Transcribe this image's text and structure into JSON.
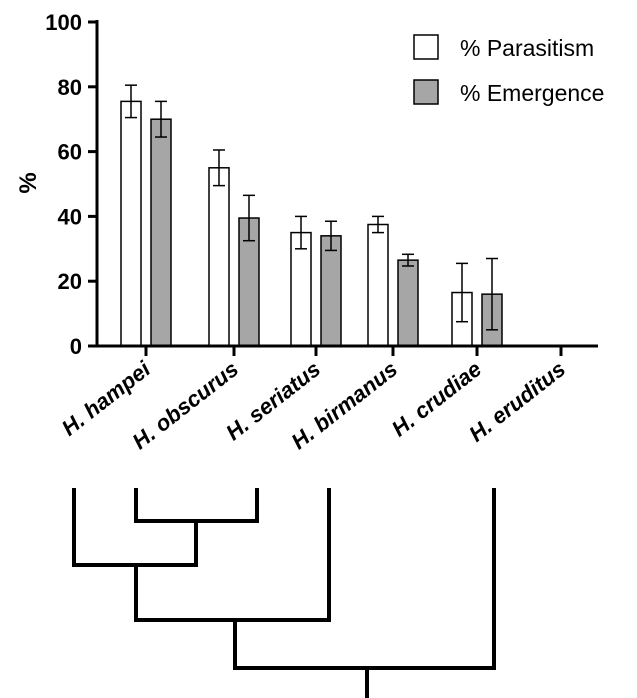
{
  "chart_data": {
    "type": "bar",
    "ylabel": "%",
    "ylim": [
      0,
      100
    ],
    "yticks": [
      "0",
      "20",
      "40",
      "60",
      "80",
      "100"
    ],
    "categories": [
      "H. hampei",
      "H. obscurus",
      "H. seriatus",
      "H. birmanus",
      "H. crudiae",
      "H. eruditus"
    ],
    "legend_position": "top-right",
    "grid": false,
    "series": [
      {
        "name": "% Parasitism",
        "color": "#ffffff",
        "values": [
          75.5,
          55,
          35,
          37.5,
          16.5,
          null
        ],
        "errors": [
          5,
          5.5,
          5,
          2.5,
          9,
          null
        ]
      },
      {
        "name": "% Emergence",
        "color": "#a6a6a6",
        "values": [
          70,
          39.5,
          34,
          26.5,
          16,
          null
        ],
        "errors": [
          5.5,
          7,
          4.5,
          1.8,
          11,
          null
        ]
      }
    ],
    "tree": {
      "description": "cladogram below the bar chart",
      "topology": [
        [
          "H. hampei",
          "H. obscurus"
        ],
        "H. seriatus",
        "H. crudiae"
      ]
    }
  }
}
